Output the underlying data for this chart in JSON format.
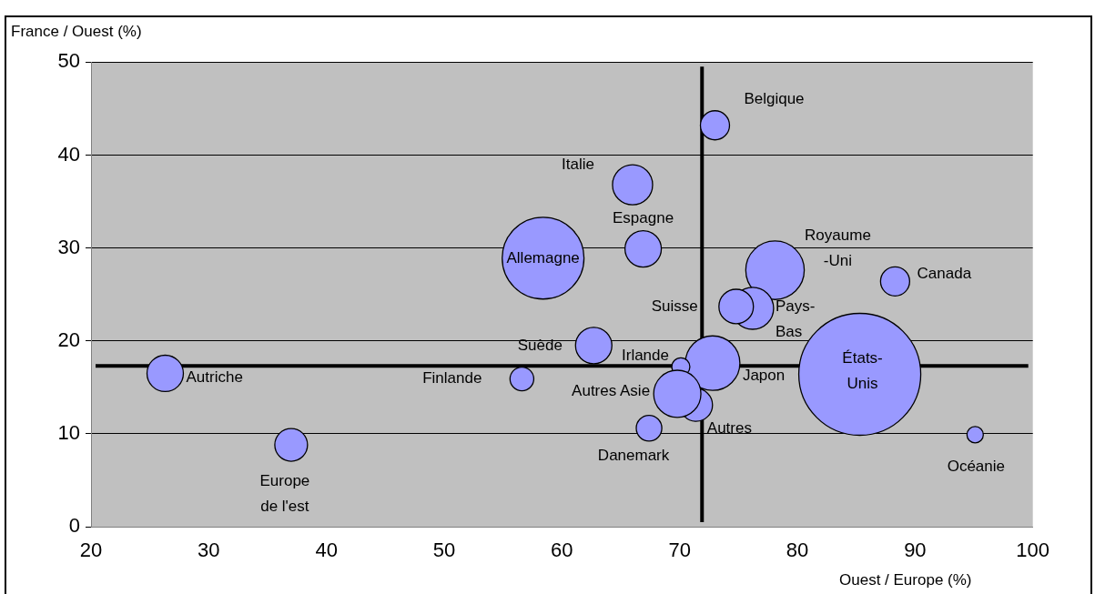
{
  "chart_data": {
    "type": "bubble",
    "ylabel": "France / Ouest (%)",
    "xlabel": "Ouest / Europe (%)",
    "xlim": [
      20,
      100
    ],
    "xticks": [
      20,
      30,
      40,
      50,
      60,
      70,
      80,
      90,
      100
    ],
    "ylim": [
      0,
      50
    ],
    "yticks": [
      0,
      10,
      20,
      30,
      40,
      50
    ],
    "grid": "y",
    "legend": false,
    "ref_lines": [
      {
        "axis": "y",
        "value": 17.3,
        "color": "#000000"
      },
      {
        "axis": "x",
        "value": 71.9,
        "color": "#000000"
      }
    ],
    "series": [
      {
        "name": "Autriche",
        "color": "#9999ff",
        "x": [
          26.3
        ],
        "values": [
          16.5
        ],
        "sizes": [
          0.089
        ]
      },
      {
        "name": "Europe de l'est",
        "color": "#9999ff",
        "x": [
          37.0
        ],
        "values": [
          8.8
        ],
        "sizes": [
          0.072
        ]
      },
      {
        "name": "Finlande",
        "color": "#9999ff",
        "x": [
          56.6
        ],
        "values": [
          15.9
        ],
        "sizes": [
          0.038
        ]
      },
      {
        "name": "Allemagne",
        "color": "#9999ff",
        "x": [
          58.4
        ],
        "values": [
          28.9
        ],
        "sizes": [
          0.45
        ]
      },
      {
        "name": "Suède",
        "color": "#9999ff",
        "x": [
          62.7
        ],
        "values": [
          19.5
        ],
        "sizes": [
          0.089
        ]
      },
      {
        "name": "Italie",
        "color": "#9999ff",
        "x": [
          66.0
        ],
        "values": [
          36.8
        ],
        "sizes": [
          0.108
        ]
      },
      {
        "name": "Espagne",
        "color": "#9999ff",
        "x": [
          66.9
        ],
        "values": [
          29.9
        ],
        "sizes": [
          0.089
        ]
      },
      {
        "name": "Belgique",
        "color": "#9999ff",
        "x": [
          73.0
        ],
        "values": [
          43.2
        ],
        "sizes": [
          0.057
        ]
      },
      {
        "name": "Danemark",
        "color": "#9999ff",
        "x": [
          67.4
        ],
        "values": [
          10.6
        ],
        "sizes": [
          0.044
        ]
      },
      {
        "name": "Autres Asie",
        "color": "#9999ff",
        "x": [
          69.8
        ],
        "values": [
          14.3
        ],
        "sizes": [
          0.15
        ]
      },
      {
        "name": "Irlande",
        "color": "#9999ff",
        "x": [
          70.1
        ],
        "values": [
          17.2
        ],
        "sizes": [
          0.022
        ]
      },
      {
        "name": "Autres",
        "color": "#9999ff",
        "x": [
          71.4
        ],
        "values": [
          13.1
        ],
        "sizes": [
          0.072
        ]
      },
      {
        "name": "Japon",
        "color": "#9999ff",
        "x": [
          72.8
        ],
        "values": [
          17.6
        ],
        "sizes": [
          0.2
        ]
      },
      {
        "name": "Suisse",
        "color": "#9999ff",
        "x": [
          74.8
        ],
        "values": [
          23.7
        ],
        "sizes": [
          0.08
        ]
      },
      {
        "name": "Pays-Bas",
        "color": "#9999ff",
        "x": [
          76.2
        ],
        "values": [
          23.5
        ],
        "sizes": [
          0.118
        ]
      },
      {
        "name": "Royaume-Uni",
        "color": "#9999ff",
        "x": [
          78.1
        ],
        "values": [
          27.6
        ],
        "sizes": [
          0.23
        ]
      },
      {
        "name": "Canada",
        "color": "#9999ff",
        "x": [
          88.3
        ],
        "values": [
          26.4
        ],
        "sizes": [
          0.057
        ]
      },
      {
        "name": "États-Unis",
        "color": "#9999ff",
        "x": [
          85.3
        ],
        "values": [
          16.4
        ],
        "sizes": [
          1
        ]
      },
      {
        "name": "Océanie",
        "color": "#9999ff",
        "x": [
          95.1
        ],
        "values": [
          9.9
        ],
        "sizes": [
          0.018
        ]
      }
    ]
  }
}
